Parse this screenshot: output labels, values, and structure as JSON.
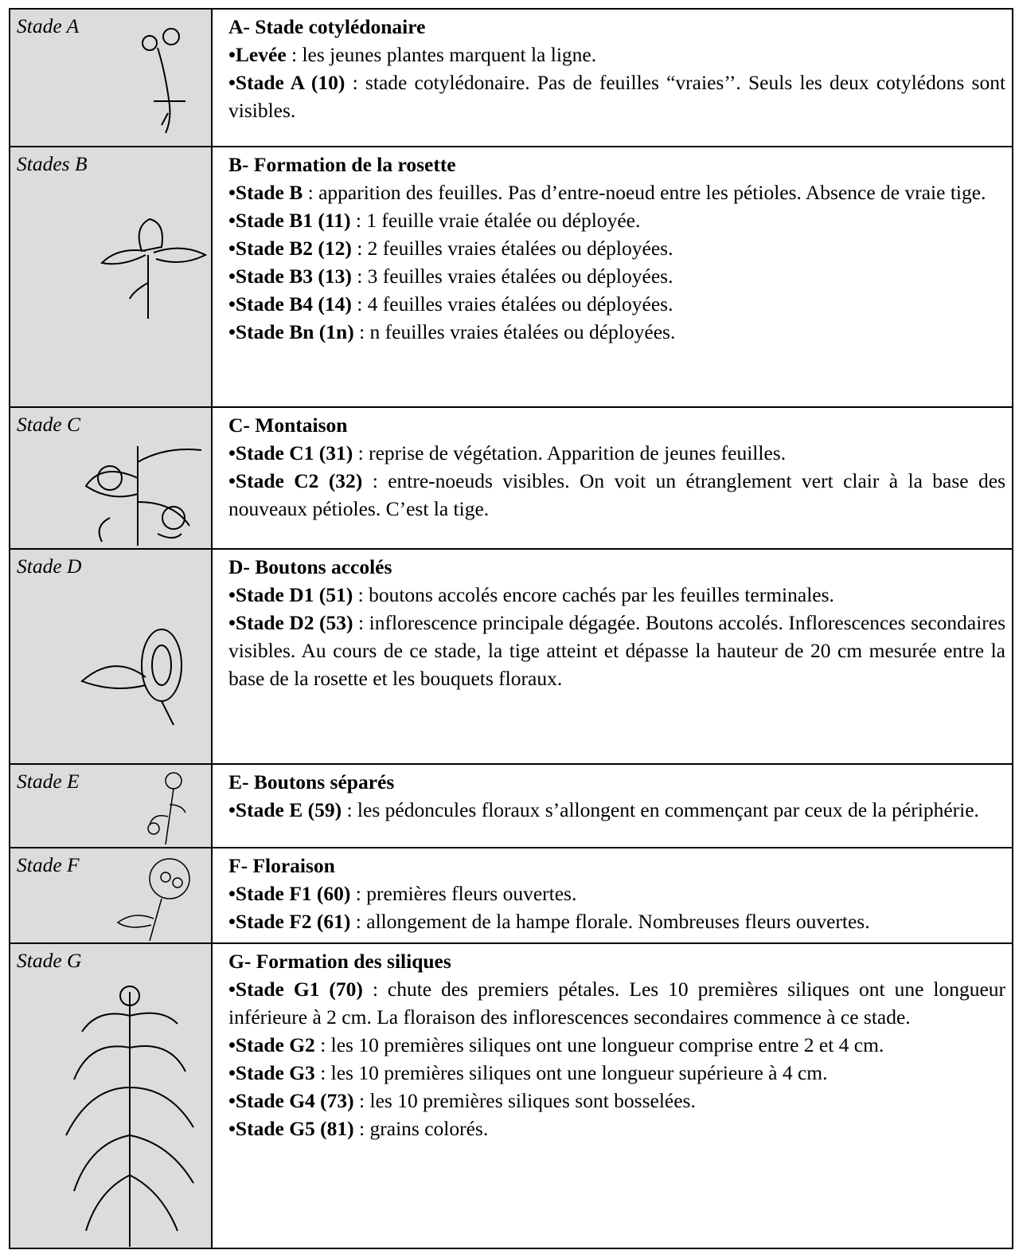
{
  "rows": [
    {
      "label": "Stade A",
      "title": "A- Stade cotylédonaire",
      "items": [
        {
          "bold": "•Levée",
          "text": ": les jeunes plantes marquent la ligne."
        },
        {
          "bold": "•Stade A (10)",
          "text": ": stade cotylédonaire. Pas de feuilles “vraies’’. Seuls les deux cotylédons sont visibles."
        }
      ]
    },
    {
      "label": "Stades B",
      "title": "B- Formation de la rosette",
      "items": [
        {
          "bold": "•Stade B",
          "text": ": apparition des feuilles. Pas d’entre-noeud entre les pétioles. Absence de vraie tige."
        },
        {
          "bold": "•Stade B1 (11)",
          "text": ": 1 feuille vraie étalée ou déployée."
        },
        {
          "bold": "•Stade B2 (12)",
          "text": ": 2 feuilles vraies étalées ou déployées."
        },
        {
          "bold": "•Stade B3 (13)",
          "text": ": 3 feuilles vraies étalées ou déployées."
        },
        {
          "bold": "•Stade B4 (14)",
          "text": ": 4 feuilles vraies étalées ou déployées."
        },
        {
          "bold": "•Stade Bn (1n)",
          "text": ": n feuilles vraies étalées ou déployées."
        }
      ]
    },
    {
      "label": "Stade C",
      "title": "C- Montaison",
      "items": [
        {
          "bold": "•Stade C1 (31)",
          "text": ": reprise de végétation. Apparition de jeunes feuilles."
        },
        {
          "bold": "•Stade C2 (32)",
          "text": ": entre-noeuds visibles. On voit un étranglement vert clair à la base des nouveaux pétioles. C’est la tige."
        }
      ]
    },
    {
      "label": "Stade D",
      "title": "D- Boutons accolés",
      "items": [
        {
          "bold": "•Stade D1 (51)",
          "text": ": boutons accolés encore cachés par les feuilles terminales."
        },
        {
          "bold": "•Stade D2 (53)",
          "text": ": inflorescence principale dégagée. Boutons accolés. Inflorescences secondaires visibles. Au cours de ce stade, la tige atteint et dépasse la hauteur de 20 cm mesurée entre la base de la rosette et les bouquets floraux."
        }
      ]
    },
    {
      "label": "Stade E",
      "title": "E- Boutons séparés",
      "items": [
        {
          "bold": "•Stade E (59)",
          "text": ": les pédoncules floraux s’allongent en commençant par ceux de la périphérie."
        }
      ]
    },
    {
      "label": "Stade F",
      "title": "F- Floraison",
      "items": [
        {
          "bold": "•Stade F1 (60)",
          "text": ": premières fleurs ouvertes."
        },
        {
          "bold": "•Stade F2 (61)",
          "text": ": allongement de la hampe florale. Nombreuses fleurs ouvertes."
        }
      ]
    },
    {
      "label": "Stade G",
      "title": "G- Formation des siliques",
      "items": [
        {
          "bold": "•Stade G1 (70)",
          "text": ": chute des premiers pétales. Les 10 premières siliques ont une longueur inférieure à 2 cm. La floraison des inflorescences secondaires commence à ce stade."
        },
        {
          "bold": "•Stade G2",
          "text": ": les 10 premières siliques ont une longueur comprise entre 2 et 4 cm."
        },
        {
          "bold": "•Stade G3",
          "text": ": les 10 premières siliques ont une longueur supérieure à 4 cm."
        },
        {
          "bold": "•Stade G4 (73)",
          "text": ": les 10 premières siliques sont bosselées."
        },
        {
          "bold": "•Stade G5 (81)",
          "text": ": grains colorés."
        }
      ]
    }
  ]
}
